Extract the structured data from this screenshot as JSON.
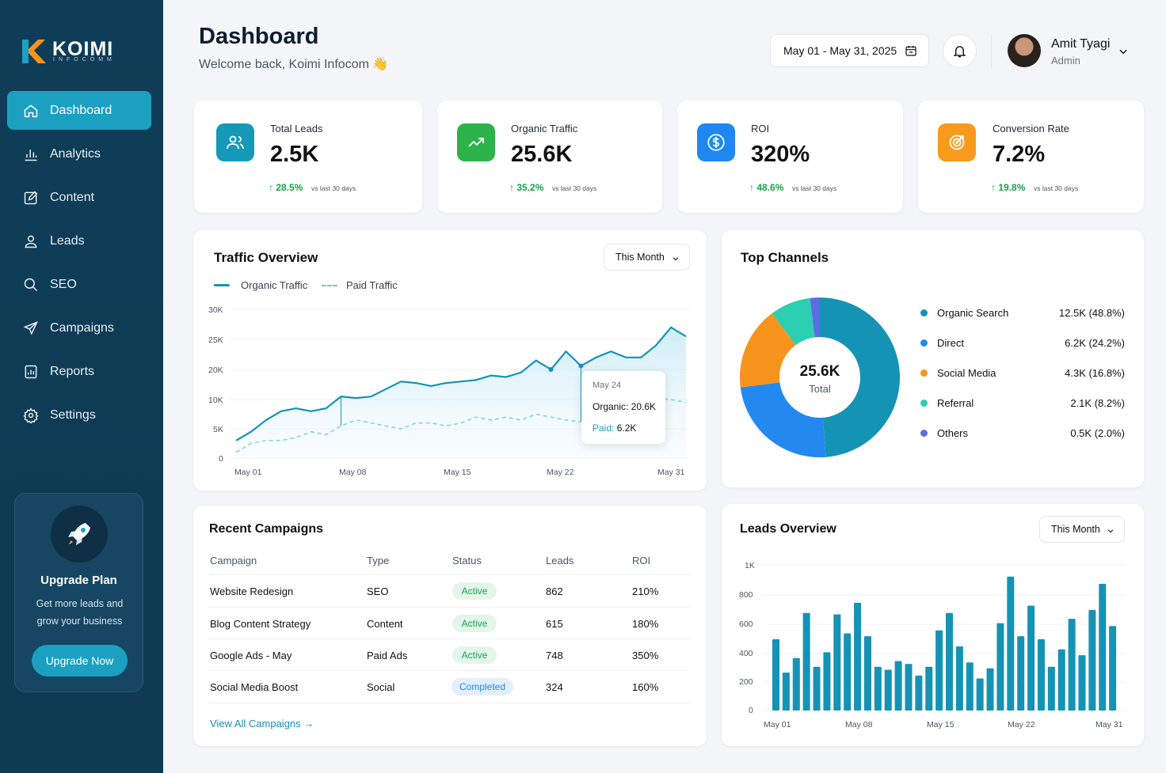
{
  "brand": {
    "name": "KOIMI",
    "sub": "INFOCOMM"
  },
  "colors": {
    "sidebar": "#0f3d57",
    "accent": "#1ba0c2",
    "positive": "#16a34a"
  },
  "sidebar": {
    "items": [
      {
        "label": "Dashboard",
        "icon": "home-icon",
        "active": true
      },
      {
        "label": "Analytics",
        "icon": "bar-chart-icon"
      },
      {
        "label": "Content",
        "icon": "edit-icon"
      },
      {
        "label": "Leads",
        "icon": "user-icon"
      },
      {
        "label": "SEO",
        "icon": "search-icon"
      },
      {
        "label": "Campaigns",
        "icon": "send-icon"
      },
      {
        "label": "Reports",
        "icon": "report-icon"
      },
      {
        "label": "Settings",
        "icon": "gear-icon"
      }
    ]
  },
  "upgrade": {
    "title": "Upgrade Plan",
    "desc": "Get more leads and grow your business",
    "button": "Upgrade Now"
  },
  "header": {
    "title": "Dashboard",
    "subtitle": "Welcome back, Koimi Infocom 👋",
    "date_range": "May 01 - May 31, 2025",
    "user_name": "Amit Tyagi",
    "user_role": "Admin"
  },
  "stats": [
    {
      "label": "Total Leads",
      "value": "2.5K",
      "change": "↑ 28.5%",
      "note": "vs last 30 days",
      "icon": "users-icon",
      "color": "#1699b8"
    },
    {
      "label": "Organic Traffic",
      "value": "25.6K",
      "change": "↑ 35.2%",
      "note": "vs last 30 days",
      "icon": "trend-up-icon",
      "color": "#2cb34a"
    },
    {
      "label": "ROI",
      "value": "320%",
      "change": "↑ 48.6%",
      "note": "vs last 30 days",
      "icon": "dollar-icon",
      "color": "#1e88f0"
    },
    {
      "label": "Conversion Rate",
      "value": "7.2%",
      "change": "↑ 19.8%",
      "note": "vs last 30 days",
      "icon": "target-icon",
      "color": "#f89a1c"
    }
  ],
  "traffic": {
    "title": "Traffic Overview",
    "filter": "This Month",
    "legend_organic": "Organic Traffic",
    "legend_paid": "Paid Traffic",
    "y_ticks": [
      "30K",
      "25K",
      "20K",
      "10K",
      "5K",
      "0"
    ],
    "x_ticks": [
      "May 01",
      "May 08",
      "May 15",
      "May 22",
      "May 31"
    ],
    "tooltip": {
      "date": "May 24",
      "organic": "Organic: 20.6K",
      "paid_label": "Paid:",
      "paid_value": "6.2K"
    }
  },
  "channels": {
    "title": "Top Channels",
    "center_value": "25.6K",
    "center_label": "Total",
    "items": [
      {
        "name": "Organic Search",
        "value": "12.5K (48.8%)",
        "color": "#1593b5",
        "pct": 48.8
      },
      {
        "name": "Direct",
        "value": "6.2K (24.2%)",
        "color": "#2389f0",
        "pct": 24.2
      },
      {
        "name": "Social Media",
        "value": "4.3K (16.8%)",
        "color": "#f7941d",
        "pct": 16.8
      },
      {
        "name": "Referral",
        "value": "2.1K (8.2%)",
        "color": "#2ccfb1",
        "pct": 8.2
      },
      {
        "name": "Others",
        "value": "0.5K (2.0%)",
        "color": "#5b6ee1",
        "pct": 2.0
      }
    ]
  },
  "campaigns": {
    "title": "Recent Campaigns",
    "headers": [
      "Campaign",
      "Type",
      "Status",
      "Leads",
      "ROI"
    ],
    "rows": [
      {
        "campaign": "Website Redesign",
        "type": "SEO",
        "status": "Active",
        "leads": "862",
        "roi": "210%"
      },
      {
        "campaign": "Blog Content Strategy",
        "type": "Content",
        "status": "Active",
        "leads": "615",
        "roi": "180%"
      },
      {
        "campaign": "Google Ads - May",
        "type": "Paid Ads",
        "status": "Active",
        "leads": "748",
        "roi": "350%"
      },
      {
        "campaign": "Social Media Boost",
        "type": "Social",
        "status": "Completed",
        "leads": "324",
        "roi": "160%"
      }
    ],
    "view_all": "View All Campaigns →"
  },
  "leads": {
    "title": "Leads Overview",
    "filter": "This Month",
    "y_ticks": [
      "1K",
      "800",
      "600",
      "400",
      "200",
      "0"
    ],
    "x_ticks": [
      "May 01",
      "May 08",
      "May 15",
      "May 22",
      "May 31"
    ]
  },
  "chart_data": [
    {
      "type": "area",
      "title": "Traffic Overview",
      "x": [
        "May 01",
        "May 02",
        "May 03",
        "May 04",
        "May 05",
        "May 06",
        "May 07",
        "May 08",
        "May 09",
        "May 10",
        "May 11",
        "May 12",
        "May 13",
        "May 14",
        "May 15",
        "May 16",
        "May 17",
        "May 18",
        "May 19",
        "May 20",
        "May 21",
        "May 22",
        "May 23",
        "May 24",
        "May 25",
        "May 26",
        "May 27",
        "May 28",
        "May 29",
        "May 30",
        "May 31"
      ],
      "series": [
        {
          "name": "Organic Traffic",
          "values": [
            3,
            4.5,
            6.5,
            8,
            8.5,
            8,
            8.5,
            11,
            10.5,
            11,
            13.5,
            16,
            15.5,
            14.5,
            15.5,
            16,
            16.5,
            18,
            17.5,
            19,
            21.5,
            20,
            23,
            20.6,
            22,
            23,
            22,
            22,
            24,
            27,
            25.5
          ]
        },
        {
          "name": "Paid Traffic",
          "values": [
            1,
            2.5,
            3,
            3,
            3.5,
            4.5,
            4,
            5.5,
            6.5,
            6,
            5.5,
            5,
            6,
            6,
            5.5,
            6,
            7,
            6.5,
            7,
            6.5,
            7.5,
            7,
            6.5,
            6.2,
            8,
            9,
            8.5,
            10,
            10.5,
            10,
            9.5
          ]
        }
      ],
      "y_ticks": [
        "30K",
        "25K",
        "20K",
        "10K",
        "5K",
        "0"
      ],
      "x_ticks": [
        "May 01",
        "May 08",
        "May 15",
        "May 22",
        "May 31"
      ],
      "tooltip": {
        "x": "May 24",
        "Organic": "20.6K",
        "Paid": "6.2K"
      }
    },
    {
      "type": "pie",
      "title": "Top Channels",
      "categories": [
        "Organic Search",
        "Direct",
        "Social Media",
        "Referral",
        "Others"
      ],
      "values": [
        48.8,
        24.2,
        16.8,
        8.2,
        2.0
      ],
      "center": "25.6K Total"
    },
    {
      "type": "bar",
      "title": "Leads Overview",
      "values": [
        490,
        260,
        360,
        670,
        300,
        400,
        660,
        530,
        740,
        510,
        300,
        280,
        340,
        320,
        240,
        300,
        550,
        670,
        440,
        330,
        220,
        290,
        600,
        920,
        510,
        720,
        490,
        300,
        420,
        630,
        380,
        690,
        870,
        580
      ],
      "ylim": [
        0,
        1000
      ],
      "y_ticks": [
        "1K",
        "800",
        "600",
        "400",
        "200",
        "0"
      ],
      "x_ticks": [
        "May 01",
        "May 08",
        "May 15",
        "May 22",
        "May 31"
      ]
    }
  ]
}
